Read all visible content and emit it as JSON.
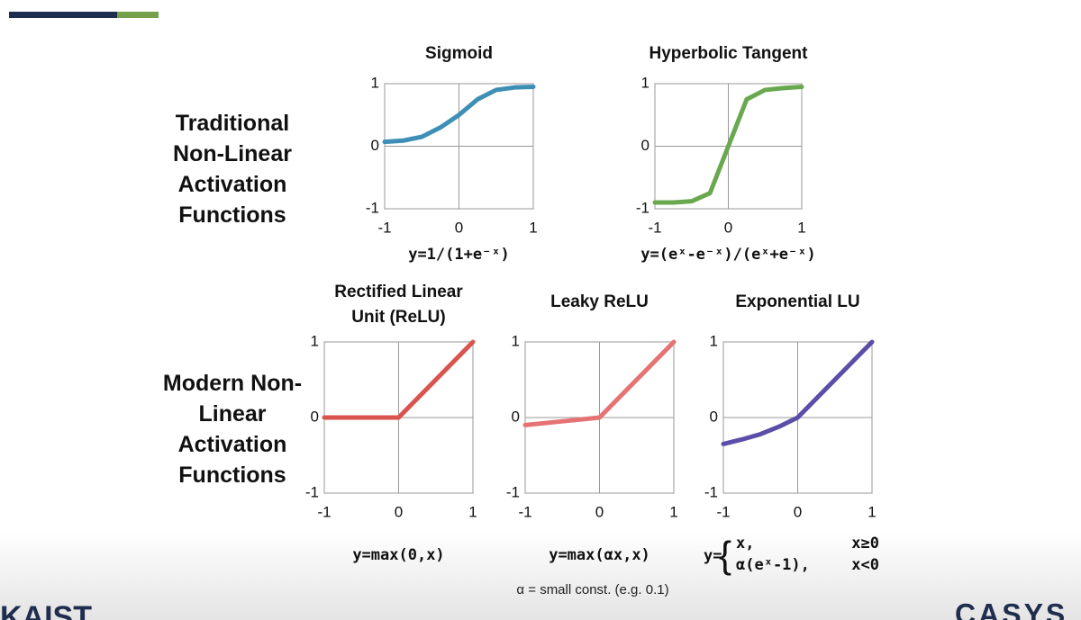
{
  "labels": {
    "traditional": "Traditional Non-Linear Activation Functions",
    "modern": "Modern Non-Linear Activation Functions",
    "note": "α = small const. (e.g. 0.1)"
  },
  "footer": {
    "left": "KAIST",
    "right": "CASYS"
  },
  "chart_data": [
    {
      "type": "line",
      "title": "Sigmoid",
      "formula": "y=1/(1+e⁻ˣ)",
      "color": "#3d8fb5",
      "x": [
        -1,
        -0.75,
        -0.5,
        -0.25,
        0,
        0.25,
        0.5,
        0.75,
        1
      ],
      "values": [
        0.07,
        0.09,
        0.15,
        0.3,
        0.5,
        0.75,
        0.9,
        0.94,
        0.95
      ],
      "xlim": [
        -1,
        1
      ],
      "ylim": [
        -1,
        1
      ],
      "xticks": [
        -1,
        0,
        1
      ],
      "yticks": [
        -1,
        0,
        1
      ],
      "grid": true
    },
    {
      "type": "line",
      "title": "Hyperbolic Tangent",
      "formula": "y=(eˣ-e⁻ˣ)/(eˣ+e⁻ˣ)",
      "color": "#6aa84f",
      "x": [
        -1,
        -0.75,
        -0.5,
        -0.25,
        0,
        0.25,
        0.5,
        0.75,
        1
      ],
      "values": [
        -0.9,
        -0.9,
        -0.88,
        -0.75,
        0,
        0.75,
        0.9,
        0.93,
        0.95
      ],
      "xlim": [
        -1,
        1
      ],
      "ylim": [
        -1,
        1
      ],
      "xticks": [
        -1,
        0,
        1
      ],
      "yticks": [
        -1,
        0,
        1
      ],
      "grid": true
    },
    {
      "type": "line",
      "title": "Rectified Linear Unit (ReLU)",
      "formula": "y=max(0,x)",
      "color": "#d9534f",
      "x": [
        -1,
        -0.75,
        -0.5,
        -0.25,
        0,
        0.25,
        0.5,
        0.75,
        1
      ],
      "values": [
        0,
        0,
        0,
        0,
        0,
        0.25,
        0.5,
        0.75,
        1
      ],
      "xlim": [
        -1,
        1
      ],
      "ylim": [
        -1,
        1
      ],
      "xticks": [
        -1,
        0,
        1
      ],
      "yticks": [
        -1,
        0,
        1
      ],
      "grid": true
    },
    {
      "type": "line",
      "title": "Leaky ReLU",
      "formula": "y=max(αx,x)",
      "color": "#e57373",
      "x": [
        -1,
        -0.75,
        -0.5,
        -0.25,
        0,
        0.25,
        0.5,
        0.75,
        1
      ],
      "values": [
        -0.1,
        -0.075,
        -0.05,
        -0.025,
        0,
        0.25,
        0.5,
        0.75,
        1
      ],
      "xlim": [
        -1,
        1
      ],
      "ylim": [
        -1,
        1
      ],
      "xticks": [
        -1,
        0,
        1
      ],
      "yticks": [
        -1,
        0,
        1
      ],
      "grid": true
    },
    {
      "type": "line",
      "title": "Exponential LU",
      "formula_lhs": "y=",
      "formula_cases": [
        [
          "x,",
          "x≥0"
        ],
        [
          "α(eˣ-1),",
          "x<0"
        ]
      ],
      "color": "#5b4ea8",
      "x": [
        -1,
        -0.75,
        -0.5,
        -0.25,
        0,
        0.25,
        0.5,
        0.75,
        1
      ],
      "values": [
        -0.35,
        -0.29,
        -0.22,
        -0.12,
        0,
        0.25,
        0.5,
        0.75,
        1
      ],
      "xlim": [
        -1,
        1
      ],
      "ylim": [
        -1,
        1
      ],
      "xticks": [
        -1,
        0,
        1
      ],
      "yticks": [
        -1,
        0,
        1
      ],
      "grid": true
    }
  ]
}
